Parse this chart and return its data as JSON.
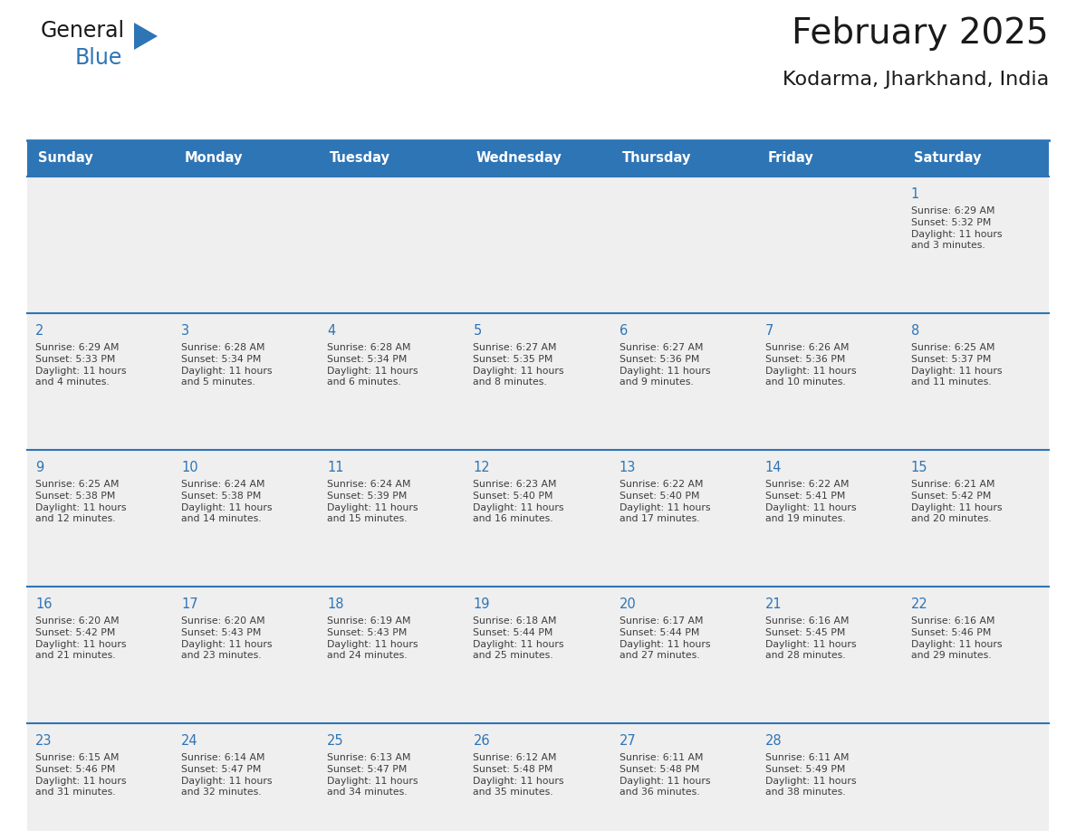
{
  "title": "February 2025",
  "subtitle": "Kodarma, Jharkhand, India",
  "header_bg": "#2E75B6",
  "header_text_color": "#FFFFFF",
  "cell_bg": "#EFEFEF",
  "cell_border_color": "#2E75B6",
  "day_number_color": "#2E75B6",
  "info_text_color": "#3D3D3D",
  "logo_dark_color": "#1A1A1A",
  "logo_blue_color": "#2E75B6",
  "title_color": "#1A1A1A",
  "days_of_week": [
    "Sunday",
    "Monday",
    "Tuesday",
    "Wednesday",
    "Thursday",
    "Friday",
    "Saturday"
  ],
  "calendar_data": [
    [
      null,
      null,
      null,
      null,
      null,
      null,
      {
        "day": "1",
        "sunrise": "6:29 AM",
        "sunset": "5:32 PM",
        "daylight": "11 hours\nand 3 minutes."
      }
    ],
    [
      {
        "day": "2",
        "sunrise": "6:29 AM",
        "sunset": "5:33 PM",
        "daylight": "11 hours\nand 4 minutes."
      },
      {
        "day": "3",
        "sunrise": "6:28 AM",
        "sunset": "5:34 PM",
        "daylight": "11 hours\nand 5 minutes."
      },
      {
        "day": "4",
        "sunrise": "6:28 AM",
        "sunset": "5:34 PM",
        "daylight": "11 hours\nand 6 minutes."
      },
      {
        "day": "5",
        "sunrise": "6:27 AM",
        "sunset": "5:35 PM",
        "daylight": "11 hours\nand 8 minutes."
      },
      {
        "day": "6",
        "sunrise": "6:27 AM",
        "sunset": "5:36 PM",
        "daylight": "11 hours\nand 9 minutes."
      },
      {
        "day": "7",
        "sunrise": "6:26 AM",
        "sunset": "5:36 PM",
        "daylight": "11 hours\nand 10 minutes."
      },
      {
        "day": "8",
        "sunrise": "6:25 AM",
        "sunset": "5:37 PM",
        "daylight": "11 hours\nand 11 minutes."
      }
    ],
    [
      {
        "day": "9",
        "sunrise": "6:25 AM",
        "sunset": "5:38 PM",
        "daylight": "11 hours\nand 12 minutes."
      },
      {
        "day": "10",
        "sunrise": "6:24 AM",
        "sunset": "5:38 PM",
        "daylight": "11 hours\nand 14 minutes."
      },
      {
        "day": "11",
        "sunrise": "6:24 AM",
        "sunset": "5:39 PM",
        "daylight": "11 hours\nand 15 minutes."
      },
      {
        "day": "12",
        "sunrise": "6:23 AM",
        "sunset": "5:40 PM",
        "daylight": "11 hours\nand 16 minutes."
      },
      {
        "day": "13",
        "sunrise": "6:22 AM",
        "sunset": "5:40 PM",
        "daylight": "11 hours\nand 17 minutes."
      },
      {
        "day": "14",
        "sunrise": "6:22 AM",
        "sunset": "5:41 PM",
        "daylight": "11 hours\nand 19 minutes."
      },
      {
        "day": "15",
        "sunrise": "6:21 AM",
        "sunset": "5:42 PM",
        "daylight": "11 hours\nand 20 minutes."
      }
    ],
    [
      {
        "day": "16",
        "sunrise": "6:20 AM",
        "sunset": "5:42 PM",
        "daylight": "11 hours\nand 21 minutes."
      },
      {
        "day": "17",
        "sunrise": "6:20 AM",
        "sunset": "5:43 PM",
        "daylight": "11 hours\nand 23 minutes."
      },
      {
        "day": "18",
        "sunrise": "6:19 AM",
        "sunset": "5:43 PM",
        "daylight": "11 hours\nand 24 minutes."
      },
      {
        "day": "19",
        "sunrise": "6:18 AM",
        "sunset": "5:44 PM",
        "daylight": "11 hours\nand 25 minutes."
      },
      {
        "day": "20",
        "sunrise": "6:17 AM",
        "sunset": "5:44 PM",
        "daylight": "11 hours\nand 27 minutes."
      },
      {
        "day": "21",
        "sunrise": "6:16 AM",
        "sunset": "5:45 PM",
        "daylight": "11 hours\nand 28 minutes."
      },
      {
        "day": "22",
        "sunrise": "6:16 AM",
        "sunset": "5:46 PM",
        "daylight": "11 hours\nand 29 minutes."
      }
    ],
    [
      {
        "day": "23",
        "sunrise": "6:15 AM",
        "sunset": "5:46 PM",
        "daylight": "11 hours\nand 31 minutes."
      },
      {
        "day": "24",
        "sunrise": "6:14 AM",
        "sunset": "5:47 PM",
        "daylight": "11 hours\nand 32 minutes."
      },
      {
        "day": "25",
        "sunrise": "6:13 AM",
        "sunset": "5:47 PM",
        "daylight": "11 hours\nand 34 minutes."
      },
      {
        "day": "26",
        "sunrise": "6:12 AM",
        "sunset": "5:48 PM",
        "daylight": "11 hours\nand 35 minutes."
      },
      {
        "day": "27",
        "sunrise": "6:11 AM",
        "sunset": "5:48 PM",
        "daylight": "11 hours\nand 36 minutes."
      },
      {
        "day": "28",
        "sunrise": "6:11 AM",
        "sunset": "5:49 PM",
        "daylight": "11 hours\nand 38 minutes."
      },
      null
    ]
  ]
}
